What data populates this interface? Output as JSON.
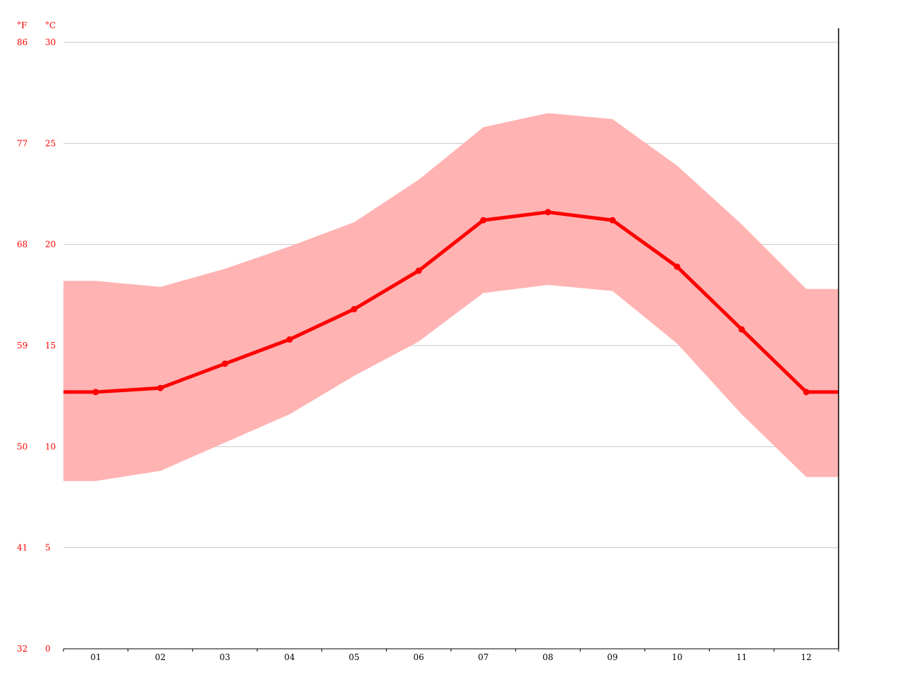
{
  "chart_data": {
    "type": "line",
    "title": "",
    "xlabel": "",
    "ylabel": "",
    "unit_f": "°F",
    "unit_c": "°C",
    "categories": [
      "01",
      "02",
      "03",
      "04",
      "05",
      "06",
      "07",
      "08",
      "09",
      "10",
      "11",
      "12"
    ],
    "y_ticks_c": [
      "0",
      "5",
      "10",
      "15",
      "20",
      "25",
      "30"
    ],
    "y_ticks_f": [
      "32",
      "41",
      "50",
      "59",
      "68",
      "77",
      "86"
    ],
    "ylim": [
      0,
      30
    ],
    "grid": true,
    "series": [
      {
        "values": [
          12.7,
          12.9,
          14.1,
          15.3,
          16.8,
          18.7,
          21.2,
          21.6,
          21.2,
          18.9,
          15.8,
          12.7
        ]
      }
    ],
    "band": {
      "high": [
        18.2,
        17.9,
        18.8,
        19.9,
        21.1,
        23.2,
        25.8,
        26.5,
        26.2,
        23.9,
        21.0,
        17.8
      ],
      "low": [
        8.3,
        8.8,
        10.2,
        11.6,
        13.5,
        15.2,
        17.6,
        18.0,
        17.7,
        15.1,
        11.6,
        8.5
      ]
    },
    "colors": {
      "line": "#ff0000",
      "band": "#ffb3b3",
      "grid": "#c8c8c8",
      "axis": "#000000",
      "label": "#ff0000"
    }
  }
}
